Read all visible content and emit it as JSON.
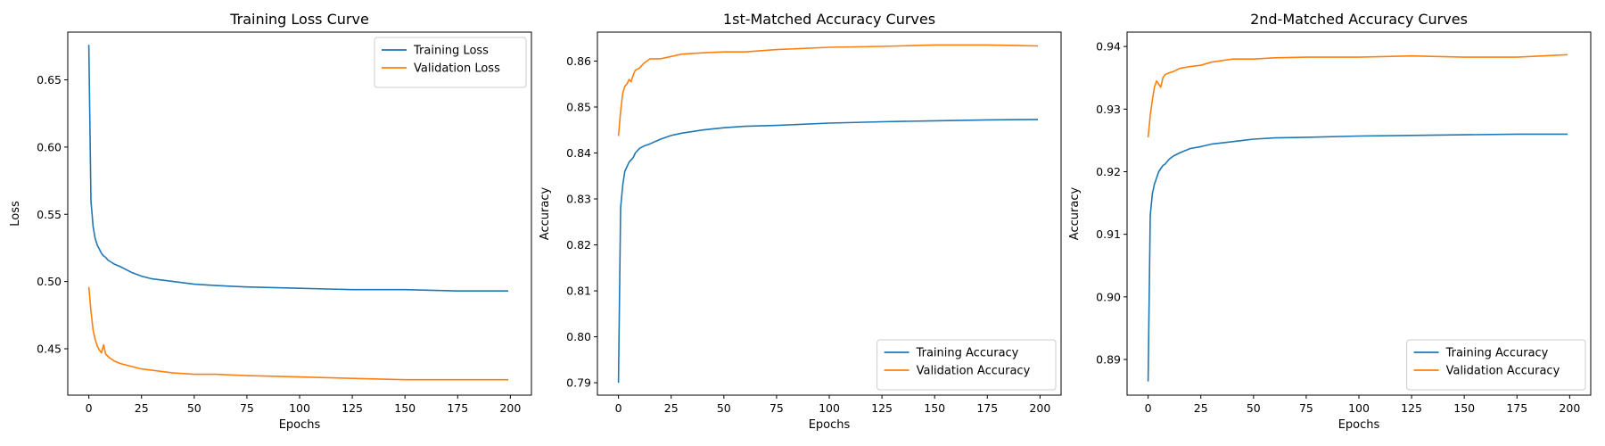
{
  "figure": {
    "background": "#ffffff"
  },
  "chart_data": [
    {
      "type": "line",
      "title": "Training Loss Curve",
      "xlabel": "Epochs",
      "ylabel": "Loss",
      "xlim": [
        -10,
        210
      ],
      "ylim": [
        0.4155,
        0.6855
      ],
      "xticks": [
        0,
        25,
        50,
        75,
        100,
        125,
        150,
        175,
        200
      ],
      "yticks": [
        0.45,
        0.5,
        0.55,
        0.6,
        0.65
      ],
      "ytick_labels": [
        "0.45",
        "0.50",
        "0.55",
        "0.60",
        "0.65"
      ],
      "legend_position": "upper-right",
      "grid": false,
      "series": [
        {
          "name": "Training Loss",
          "color": "#1f77b4",
          "x": [
            0,
            1,
            2,
            3,
            4,
            5,
            6,
            7,
            8,
            9,
            10,
            12,
            15,
            20,
            25,
            30,
            40,
            50,
            60,
            75,
            100,
            125,
            150,
            175,
            199
          ],
          "y": [
            0.676,
            0.56,
            0.541,
            0.532,
            0.527,
            0.524,
            0.521,
            0.519,
            0.518,
            0.516,
            0.515,
            0.513,
            0.511,
            0.507,
            0.504,
            0.502,
            0.5,
            0.498,
            0.497,
            0.496,
            0.495,
            0.494,
            0.494,
            0.493,
            0.493
          ]
        },
        {
          "name": "Validation Loss",
          "color": "#ff7f0e",
          "x": [
            0,
            1,
            2,
            3,
            4,
            5,
            6,
            7,
            8,
            10,
            12,
            15,
            20,
            25,
            30,
            40,
            50,
            60,
            75,
            100,
            125,
            150,
            175,
            199
          ],
          "y": [
            0.496,
            0.478,
            0.464,
            0.457,
            0.452,
            0.449,
            0.447,
            0.453,
            0.446,
            0.443,
            0.441,
            0.439,
            0.437,
            0.435,
            0.434,
            0.432,
            0.431,
            0.431,
            0.43,
            0.429,
            0.428,
            0.427,
            0.427,
            0.427
          ]
        }
      ]
    },
    {
      "type": "line",
      "title": "1st-Matched Accuracy Curves",
      "xlabel": "Epochs",
      "ylabel": "Accuracy",
      "xlim": [
        -10,
        210
      ],
      "ylim": [
        0.7873,
        0.8663
      ],
      "xticks": [
        0,
        25,
        50,
        75,
        100,
        125,
        150,
        175,
        200
      ],
      "yticks": [
        0.79,
        0.8,
        0.81,
        0.82,
        0.83,
        0.84,
        0.85,
        0.86
      ],
      "ytick_labels": [
        "0.79",
        "0.80",
        "0.81",
        "0.82",
        "0.83",
        "0.84",
        "0.85",
        "0.86"
      ],
      "legend_position": "lower-right",
      "grid": false,
      "series": [
        {
          "name": "Training Accuracy",
          "color": "#1f77b4",
          "x": [
            0,
            1,
            2,
            3,
            4,
            5,
            6,
            7,
            8,
            10,
            12,
            15,
            20,
            25,
            30,
            40,
            50,
            60,
            75,
            100,
            125,
            150,
            175,
            199
          ],
          "y": [
            0.79,
            0.828,
            0.833,
            0.836,
            0.837,
            0.838,
            0.8385,
            0.839,
            0.84,
            0.841,
            0.8415,
            0.842,
            0.843,
            0.8438,
            0.8443,
            0.845,
            0.8455,
            0.8458,
            0.846,
            0.8465,
            0.8468,
            0.847,
            0.8472,
            0.8473
          ]
        },
        {
          "name": "Validation Accuracy",
          "color": "#ff7f0e",
          "x": [
            0,
            1,
            2,
            3,
            4,
            5,
            6,
            7,
            8,
            10,
            12,
            15,
            20,
            25,
            30,
            40,
            50,
            60,
            75,
            100,
            125,
            150,
            175,
            199
          ],
          "y": [
            0.8437,
            0.849,
            0.853,
            0.8545,
            0.855,
            0.856,
            0.8555,
            0.857,
            0.858,
            0.8585,
            0.8595,
            0.8605,
            0.8605,
            0.861,
            0.8615,
            0.8618,
            0.862,
            0.862,
            0.8625,
            0.863,
            0.8632,
            0.8635,
            0.8635,
            0.8633
          ]
        }
      ]
    },
    {
      "type": "line",
      "title": "2nd-Matched Accuracy Curves",
      "xlabel": "Epochs",
      "ylabel": "Accuracy",
      "xlim": [
        -10,
        210
      ],
      "ylim": [
        0.8843,
        0.9423
      ],
      "xticks": [
        0,
        25,
        50,
        75,
        100,
        125,
        150,
        175,
        200
      ],
      "yticks": [
        0.89,
        0.9,
        0.91,
        0.92,
        0.93,
        0.94
      ],
      "ytick_labels": [
        "0.89",
        "0.90",
        "0.91",
        "0.92",
        "0.93",
        "0.94"
      ],
      "legend_position": "lower-right",
      "grid": false,
      "series": [
        {
          "name": "Training Accuracy",
          "color": "#1f77b4",
          "x": [
            0,
            1,
            2,
            3,
            4,
            5,
            6,
            7,
            8,
            10,
            12,
            15,
            20,
            25,
            30,
            40,
            50,
            60,
            75,
            100,
            125,
            150,
            175,
            199
          ],
          "y": [
            0.8865,
            0.913,
            0.9165,
            0.918,
            0.919,
            0.92,
            0.9205,
            0.921,
            0.9212,
            0.922,
            0.9225,
            0.923,
            0.9237,
            0.924,
            0.9244,
            0.9248,
            0.9252,
            0.9254,
            0.9255,
            0.9257,
            0.9258,
            0.9259,
            0.926,
            0.926
          ]
        },
        {
          "name": "Validation Accuracy",
          "color": "#ff7f0e",
          "x": [
            0,
            1,
            2,
            3,
            4,
            5,
            6,
            7,
            8,
            10,
            12,
            15,
            20,
            25,
            30,
            40,
            50,
            60,
            75,
            100,
            125,
            150,
            175,
            199
          ],
          "y": [
            0.9255,
            0.929,
            0.9315,
            0.9335,
            0.9345,
            0.934,
            0.9335,
            0.935,
            0.9355,
            0.9358,
            0.936,
            0.9365,
            0.9368,
            0.937,
            0.9375,
            0.938,
            0.938,
            0.9382,
            0.9383,
            0.9383,
            0.9385,
            0.9383,
            0.9383,
            0.9387
          ]
        }
      ]
    }
  ]
}
